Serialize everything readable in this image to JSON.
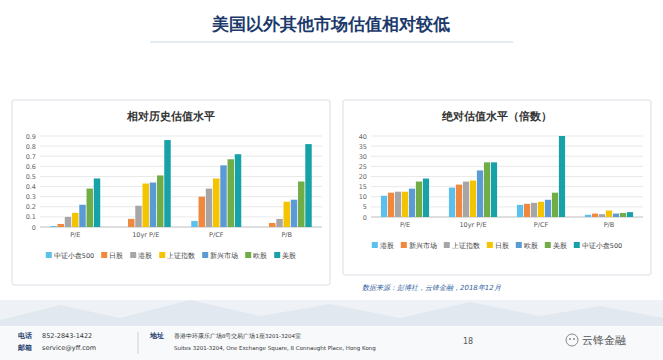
{
  "slide": {
    "title": "美国以外其他市场估值相对较低"
  },
  "chart_data": [
    {
      "type": "bar",
      "title": "相对历史估值水平",
      "categories": [
        "P/E",
        "10yr P/E",
        "P/CF",
        "P/B"
      ],
      "series": [
        {
          "name": "中证小盘500",
          "color": "#5bc0eb",
          "values": [
            0.01,
            0.0,
            0.06,
            0.0
          ]
        },
        {
          "name": "日股",
          "color": "#f0883e",
          "values": [
            0.03,
            0.08,
            0.3,
            0.04
          ]
        },
        {
          "name": "港股",
          "color": "#a6a6a6",
          "values": [
            0.1,
            0.21,
            0.38,
            0.08
          ]
        },
        {
          "name": "上证指数",
          "color": "#f5c400",
          "values": [
            0.14,
            0.43,
            0.48,
            0.25
          ]
        },
        {
          "name": "新兴市场",
          "color": "#5b9bd5",
          "values": [
            0.22,
            0.44,
            0.61,
            0.27
          ]
        },
        {
          "name": "欧股",
          "color": "#70ad47",
          "values": [
            0.38,
            0.51,
            0.67,
            0.45
          ]
        },
        {
          "name": "美股",
          "color": "#17a2a8",
          "values": [
            0.48,
            0.86,
            0.72,
            0.82
          ]
        }
      ],
      "ylim": [
        0,
        0.9
      ],
      "yticks": [
        0,
        0.1,
        0.2,
        0.3,
        0.4,
        0.5,
        0.6,
        0.7,
        0.8,
        0.9
      ],
      "grid": true,
      "legend": "bottom"
    },
    {
      "type": "bar",
      "title": "绝对估值水平（倍数）",
      "categories": [
        "P/E",
        "10yr P/E",
        "P/CF",
        "P/B"
      ],
      "series": [
        {
          "name": "港股",
          "color": "#5bc0eb",
          "values": [
            10.5,
            14.5,
            6,
            1.1
          ]
        },
        {
          "name": "新兴市场",
          "color": "#f0883e",
          "values": [
            12,
            16,
            6.5,
            1.7
          ]
        },
        {
          "name": "上证指数",
          "color": "#a6a6a6",
          "values": [
            12.5,
            17.5,
            7,
            1.4
          ]
        },
        {
          "name": "日股",
          "color": "#f5c400",
          "values": [
            12.5,
            18,
            7.5,
            3.2
          ]
        },
        {
          "name": "欧股",
          "color": "#5b9bd5",
          "values": [
            14,
            23,
            8.5,
            1.7
          ]
        },
        {
          "name": "美股",
          "color": "#70ad47",
          "values": [
            17.5,
            27,
            12,
            2.0
          ]
        },
        {
          "name": "中证小盘500",
          "color": "#17a2a8",
          "values": [
            19,
            27,
            40,
            2.4
          ]
        }
      ],
      "ylim": [
        0,
        40
      ],
      "yticks": [
        0,
        5,
        10,
        15,
        20,
        25,
        30,
        35,
        40
      ],
      "grid": true,
      "legend": "bottom"
    }
  ],
  "source": "数据来源：彭博社，云锋金融，2018年12月",
  "footer": {
    "phone_label": "电话",
    "phone": "852-2843-1422",
    "email_label": "邮箱",
    "email": "service@yff.com",
    "address_label": "地址",
    "address_cn": "香港中环康乐广场8号交易广场1座3201-3204室",
    "address_en": "Suites 3201-3204, One Exchange Square, 8 Connaught Place, Hong Kong",
    "page": "18"
  },
  "watermark": "云锋金融"
}
